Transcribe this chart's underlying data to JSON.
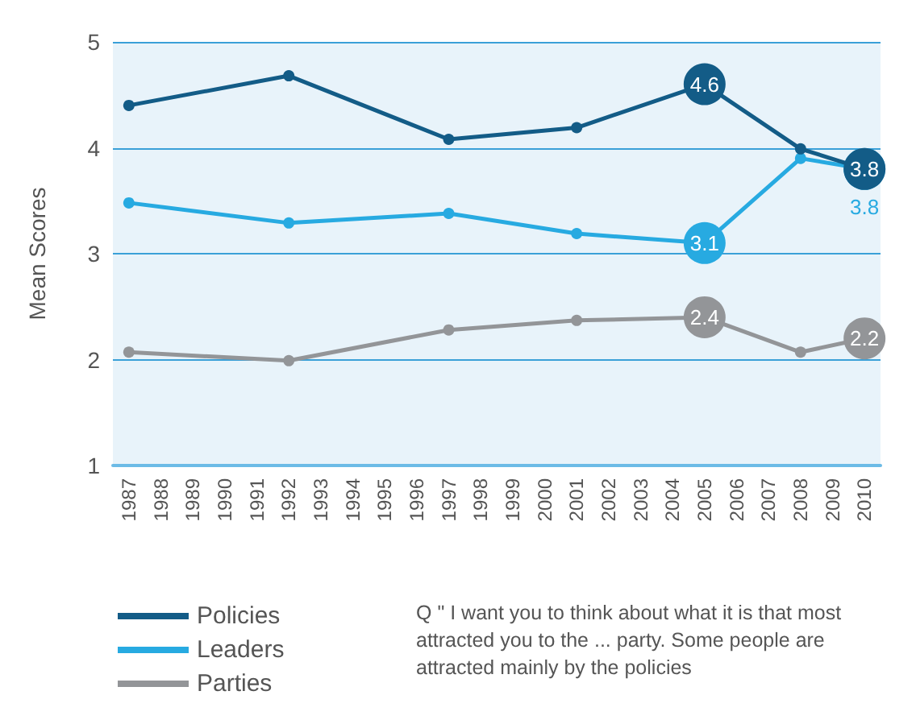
{
  "chart_data": {
    "type": "line",
    "ylabel": "Mean Scores",
    "categories": [
      "1987",
      "1988",
      "1989",
      "1990",
      "1991",
      "1992",
      "1993",
      "1994",
      "1995",
      "1996",
      "1997",
      "1998",
      "1999",
      "2000",
      "2001",
      "2002",
      "2003",
      "2004",
      "2005",
      "2006",
      "2007",
      "2008",
      "2009",
      "2010"
    ],
    "series": [
      {
        "name": "Policies",
        "color": "#135c87",
        "values": [
          4.4,
          null,
          null,
          null,
          null,
          4.68,
          null,
          null,
          null,
          null,
          4.08,
          null,
          null,
          null,
          4.19,
          null,
          null,
          null,
          4.6,
          null,
          null,
          3.99,
          null,
          3.8
        ],
        "value_labels": [
          null,
          null,
          null,
          null,
          null,
          null,
          null,
          null,
          null,
          null,
          null,
          null,
          null,
          null,
          null,
          null,
          null,
          null,
          "4.6",
          null,
          null,
          null,
          null,
          "3.8"
        ]
      },
      {
        "name": "Leaders",
        "color": "#27aae1",
        "values": [
          3.48,
          null,
          null,
          null,
          null,
          3.29,
          null,
          null,
          null,
          null,
          3.38,
          null,
          null,
          null,
          3.19,
          null,
          null,
          null,
          3.1,
          null,
          null,
          3.9,
          null,
          3.8
        ],
        "value_labels": [
          null,
          null,
          null,
          null,
          null,
          null,
          null,
          null,
          null,
          null,
          null,
          null,
          null,
          null,
          null,
          null,
          null,
          null,
          "3.1",
          null,
          null,
          null,
          null,
          "3.8"
        ]
      },
      {
        "name": "Parties",
        "color": "#939598",
        "values": [
          2.07,
          null,
          null,
          null,
          null,
          1.99,
          null,
          null,
          null,
          null,
          2.28,
          null,
          null,
          null,
          2.37,
          null,
          null,
          null,
          2.4,
          null,
          null,
          2.07,
          null,
          2.2
        ],
        "value_labels": [
          null,
          null,
          null,
          null,
          null,
          null,
          null,
          null,
          null,
          null,
          null,
          null,
          null,
          null,
          null,
          null,
          null,
          null,
          "2.4",
          null,
          null,
          null,
          null,
          "2.2"
        ]
      }
    ],
    "ylim": [
      1,
      5
    ],
    "yticks": [
      1,
      2,
      3,
      4,
      5
    ],
    "grid": "y",
    "legend": "bottom left",
    "marker": "circle",
    "line_style": "solid",
    "annotations": [
      "Q \" I want you to think about what it is that most attracted you to the ... party. Some people are attracted mainly by the policies"
    ]
  }
}
